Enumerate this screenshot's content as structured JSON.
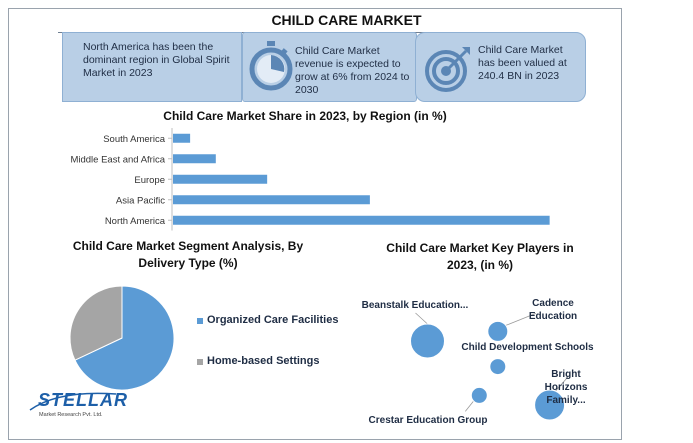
{
  "title": "CHILD CARE MARKET",
  "info_cards": [
    {
      "text": "North America has been the dominant region in Global Spirit Market in 2023",
      "icon": "none"
    },
    {
      "text": "Child Care Market revenue is expected to grow at 6% from 2024 to 2030",
      "icon": "stopwatch-icon"
    },
    {
      "text": "Child Care Market has been valued at 240.4 BN in 2023",
      "icon": "target-icon"
    }
  ],
  "colors": {
    "accent": "#5b9bd5",
    "card_bg": "#b9cfe6",
    "grey": "#a5a5a5",
    "brand": "#1d5fa8"
  },
  "chart_data": [
    {
      "type": "bar",
      "orientation": "horizontal",
      "title": "Child Care Market Share in 2023, by Region (in %)",
      "categories": [
        "South America",
        "Middle East and Africa",
        "Europe",
        "Asia Pacific",
        "North America"
      ],
      "values": [
        2,
        5,
        11,
        23,
        44
      ],
      "xlim": [
        0,
        50
      ],
      "grid": false,
      "legend": "none"
    },
    {
      "type": "pie",
      "title": "Child Care Market Segment Analysis, By Delivery Type (%)",
      "categories": [
        "Organized Care Facilities",
        "Home-based Settings"
      ],
      "values": [
        68,
        32
      ],
      "legend": "right"
    },
    {
      "type": "scatter",
      "title": "Child Care Market Key Players in 2023, (in %)",
      "series": [
        {
          "name": "Beanstalk Education...",
          "x": 1.5,
          "y": 3.0,
          "size": 17
        },
        {
          "name": "Cadence Education",
          "x": 3.4,
          "y": 3.3,
          "size": 10
        },
        {
          "name": "Child Development Schools",
          "x": 3.4,
          "y": 2.2,
          "size": 8
        },
        {
          "name": "Crestar Education Group",
          "x": 2.9,
          "y": 1.3,
          "size": 8
        },
        {
          "name": "Bright Horizons Family...",
          "x": 4.8,
          "y": 1.0,
          "size": 15
        }
      ],
      "xlim": [
        0,
        6
      ],
      "ylim": [
        0,
        4
      ],
      "grid": false
    }
  ],
  "legend_labels": [
    "Organized Care Facilities",
    "Home-based Settings"
  ],
  "logo": {
    "main": "STELLAR",
    "sub": "Market Research Pvt. Ltd."
  }
}
